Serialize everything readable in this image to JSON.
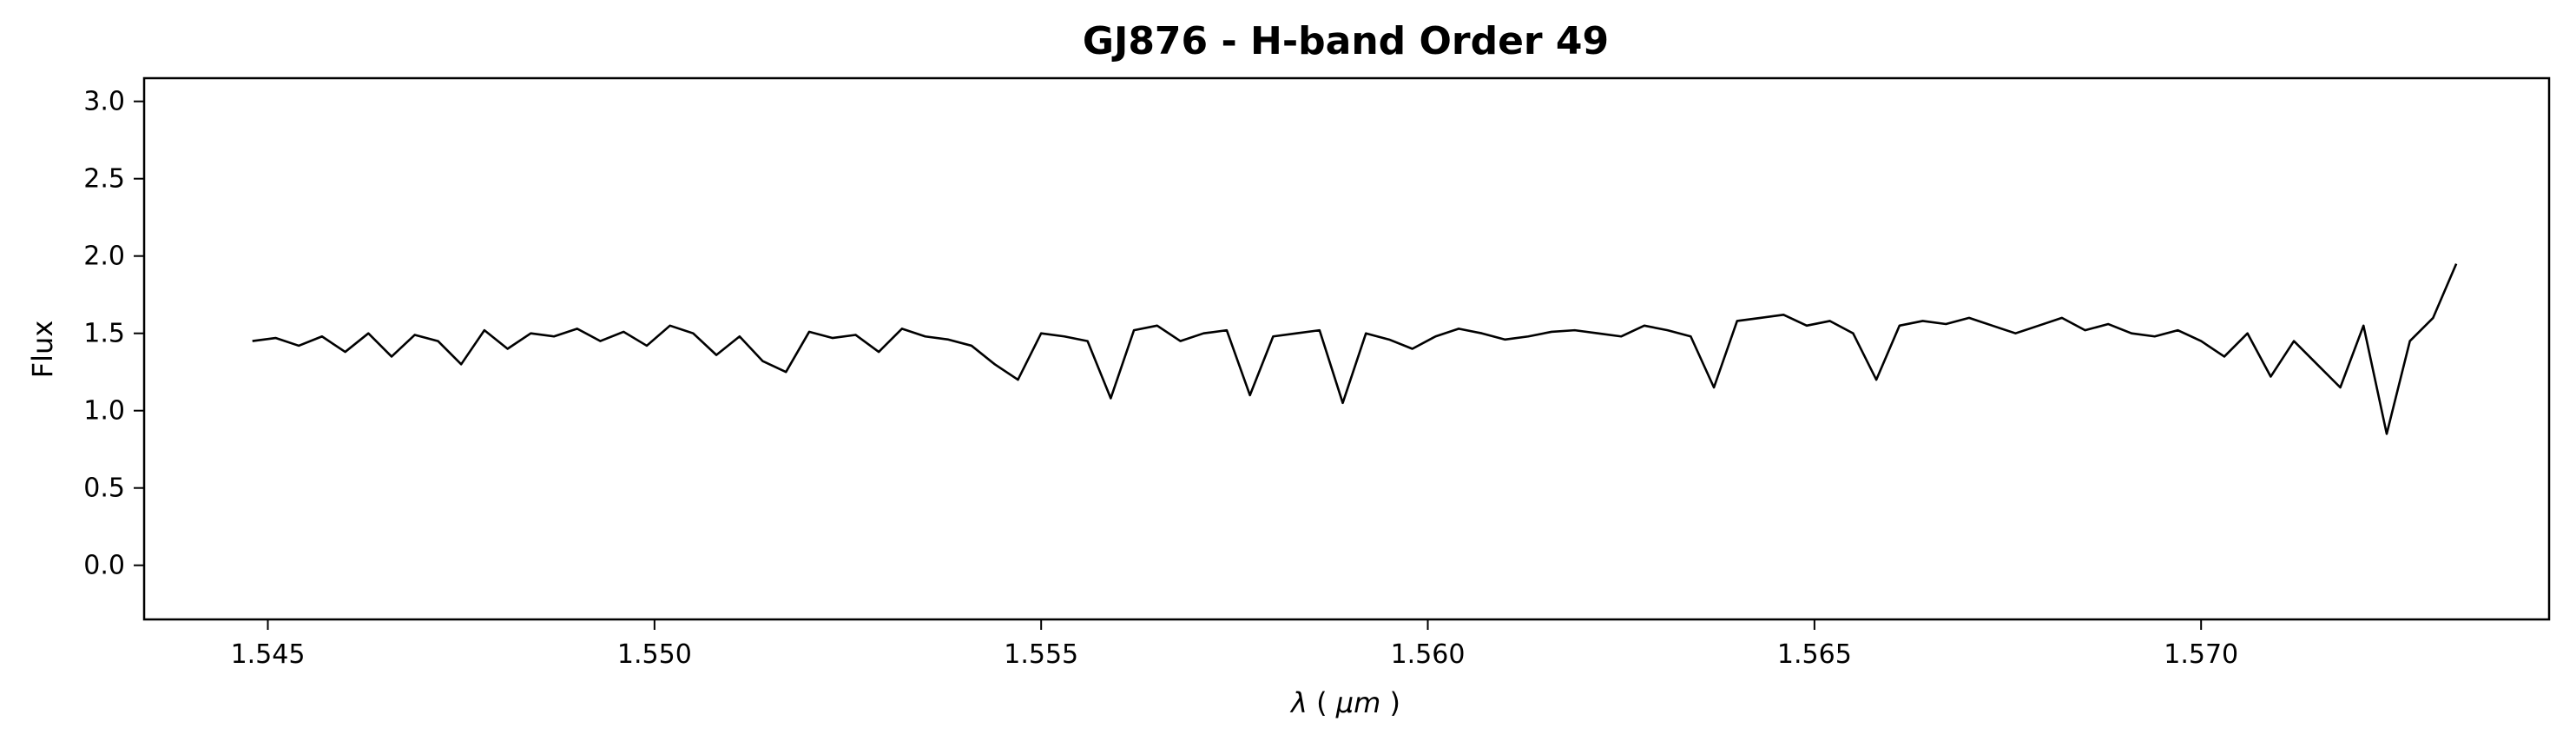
{
  "chart_data": {
    "type": "line",
    "title": "GJ876 - H-band Order 49",
    "xlabel_symbol": "λ",
    "xlabel_unit": "μm",
    "ylabel": "Flux",
    "xlim": [
      1.5434,
      1.5745
    ],
    "ylim": [
      -0.35,
      3.15
    ],
    "xticks": [
      1.545,
      1.55,
      1.555,
      1.56,
      1.565,
      1.57
    ],
    "xtick_labels": [
      "1.545",
      "1.550",
      "1.555",
      "1.560",
      "1.565",
      "1.570"
    ],
    "yticks": [
      0.0,
      0.5,
      1.0,
      1.5,
      2.0,
      2.5,
      3.0
    ],
    "ytick_labels": [
      "0.0",
      "0.5",
      "1.0",
      "1.5",
      "2.0",
      "2.5",
      "3.0"
    ],
    "grid": false,
    "line_color": "#000000",
    "series": [
      {
        "x": [
          1.5448,
          1.5451,
          1.5454,
          1.5457,
          1.546,
          1.5463,
          1.5466,
          1.5469,
          1.5472,
          1.5475,
          1.5478,
          1.5481,
          1.5484,
          1.5487,
          1.549,
          1.5493,
          1.5496,
          1.5499,
          1.5502,
          1.5505,
          1.5508,
          1.5511,
          1.5514,
          1.5517,
          1.552,
          1.5523,
          1.5526,
          1.5529,
          1.5532,
          1.5535,
          1.5538,
          1.5541,
          1.5544,
          1.5547,
          1.555,
          1.5553,
          1.5556,
          1.5559,
          1.5562,
          1.5565,
          1.5568,
          1.5571,
          1.5574,
          1.5577,
          1.558,
          1.5583,
          1.5586,
          1.5589,
          1.5592,
          1.5595,
          1.5598,
          1.5601,
          1.5604,
          1.5607,
          1.561,
          1.5613,
          1.5616,
          1.5619,
          1.5622,
          1.5625,
          1.5628,
          1.5631,
          1.5634,
          1.5637,
          1.564,
          1.5643,
          1.5646,
          1.5649,
          1.5652,
          1.5655,
          1.5658,
          1.5661,
          1.5664,
          1.5667,
          1.567,
          1.5673,
          1.5676,
          1.5679,
          1.5682,
          1.5685,
          1.5688,
          1.5691,
          1.5694,
          1.5697,
          1.57,
          1.5703,
          1.5706,
          1.5709,
          1.5712,
          1.5715,
          1.5718,
          1.5721,
          1.5724,
          1.5727,
          1.573,
          1.5733
        ],
        "y": [
          1.45,
          1.47,
          1.42,
          1.48,
          1.38,
          1.5,
          1.35,
          1.49,
          1.45,
          1.3,
          1.52,
          1.4,
          1.5,
          1.48,
          1.53,
          1.45,
          1.51,
          1.42,
          1.55,
          1.5,
          1.36,
          1.48,
          1.32,
          1.25,
          1.51,
          1.47,
          1.49,
          1.38,
          1.53,
          1.48,
          1.46,
          1.42,
          1.3,
          1.2,
          1.5,
          1.48,
          1.45,
          1.08,
          1.52,
          1.55,
          1.45,
          1.5,
          1.52,
          1.1,
          1.48,
          1.5,
          1.52,
          1.05,
          1.5,
          1.46,
          1.4,
          1.48,
          1.53,
          1.5,
          1.46,
          1.48,
          1.51,
          1.52,
          1.5,
          1.48,
          1.55,
          1.52,
          1.48,
          1.15,
          1.58,
          1.6,
          1.62,
          1.55,
          1.58,
          1.5,
          1.2,
          1.55,
          1.58,
          1.56,
          1.6,
          1.55,
          1.5,
          1.55,
          1.6,
          1.52,
          1.56,
          1.5,
          1.48,
          1.52,
          1.45,
          1.35,
          1.5,
          1.22,
          1.45,
          1.3,
          1.15,
          1.55,
          0.85,
          1.45,
          1.6,
          1.95
        ]
      }
    ]
  }
}
